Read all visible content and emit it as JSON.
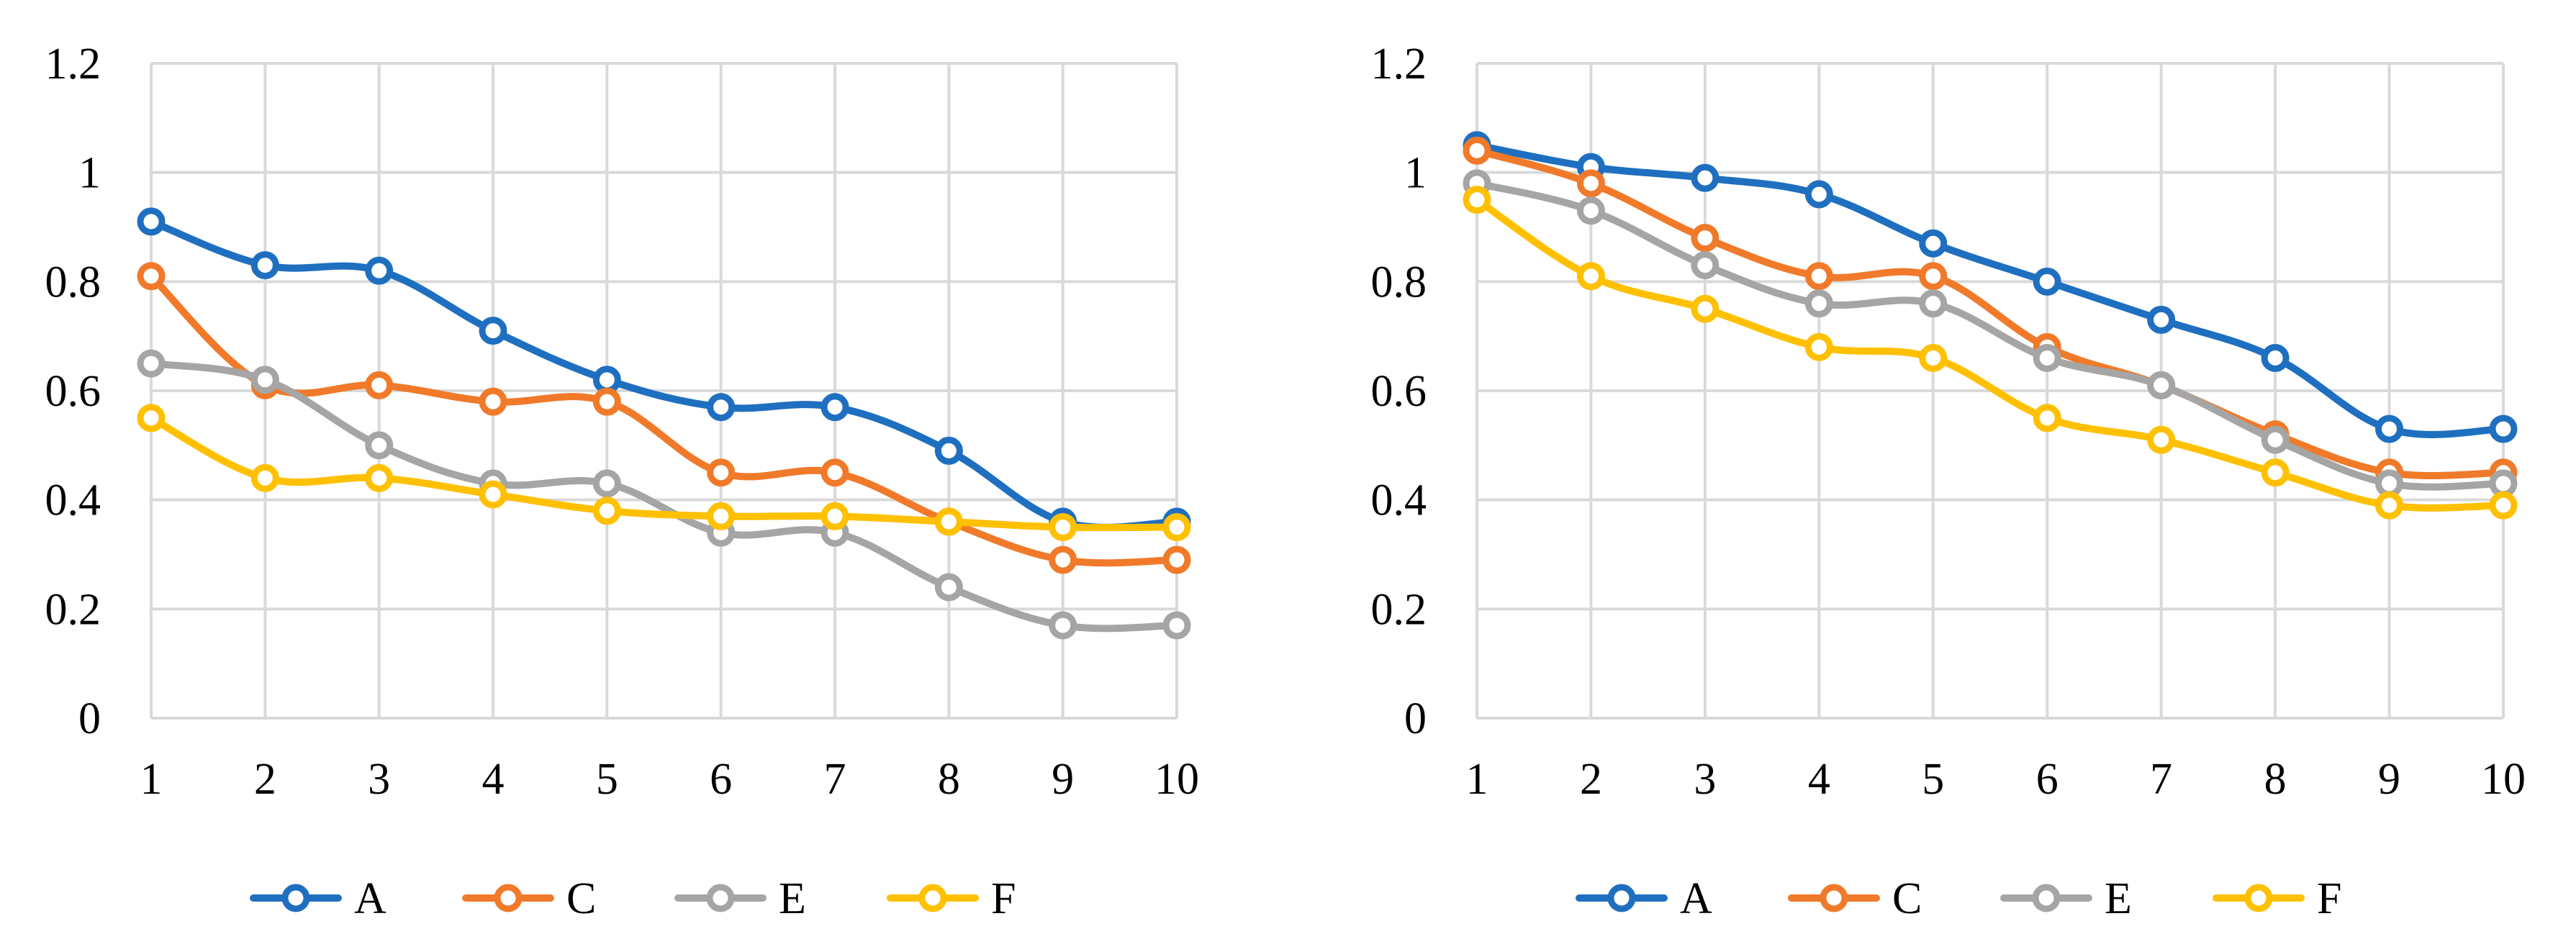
{
  "chart_data": [
    {
      "type": "line",
      "title": "",
      "xlabel": "",
      "ylabel": "",
      "x": [
        1,
        2,
        3,
        4,
        5,
        6,
        7,
        8,
        9,
        10
      ],
      "ylim": [
        0,
        1.2
      ],
      "yticks": [
        "0",
        "0.2",
        "0.4",
        "0.6",
        "0.8",
        "1",
        "1.2"
      ],
      "grid": true,
      "legend_position": "bottom",
      "series": [
        {
          "name": "A",
          "color": "#1f6fc0",
          "values": [
            0.91,
            0.83,
            0.82,
            0.71,
            0.62,
            0.57,
            0.57,
            0.49,
            0.36,
            0.36
          ]
        },
        {
          "name": "C",
          "color": "#f07a2a",
          "values": [
            0.81,
            0.61,
            0.61,
            0.58,
            0.58,
            0.45,
            0.45,
            0.36,
            0.29,
            0.29
          ]
        },
        {
          "name": "E",
          "color": "#a5a5a5",
          "values": [
            0.65,
            0.62,
            0.5,
            0.43,
            0.43,
            0.34,
            0.34,
            0.24,
            0.17,
            0.17
          ]
        },
        {
          "name": "F",
          "color": "#ffc000",
          "values": [
            0.55,
            0.44,
            0.44,
            0.41,
            0.38,
            0.37,
            0.37,
            0.36,
            0.35,
            0.35
          ]
        }
      ]
    },
    {
      "type": "line",
      "title": "",
      "xlabel": "",
      "ylabel": "",
      "x": [
        1,
        2,
        3,
        4,
        5,
        6,
        7,
        8,
        9,
        10
      ],
      "ylim": [
        0,
        1.2
      ],
      "yticks": [
        "0",
        "0.2",
        "0.4",
        "0.6",
        "0.8",
        "1",
        "1.2"
      ],
      "grid": true,
      "legend_position": "bottom",
      "series": [
        {
          "name": "A",
          "color": "#1f6fc0",
          "values": [
            1.05,
            1.01,
            0.99,
            0.96,
            0.87,
            0.8,
            0.73,
            0.66,
            0.53,
            0.53
          ]
        },
        {
          "name": "C",
          "color": "#f07a2a",
          "values": [
            1.04,
            0.98,
            0.88,
            0.81,
            0.81,
            0.68,
            0.61,
            0.52,
            0.45,
            0.45
          ]
        },
        {
          "name": "E",
          "color": "#a5a5a5",
          "values": [
            0.98,
            0.93,
            0.83,
            0.76,
            0.76,
            0.66,
            0.61,
            0.51,
            0.43,
            0.43
          ]
        },
        {
          "name": "F",
          "color": "#ffc000",
          "values": [
            0.95,
            0.81,
            0.75,
            0.68,
            0.66,
            0.55,
            0.51,
            0.45,
            0.39,
            0.39
          ]
        }
      ]
    }
  ]
}
